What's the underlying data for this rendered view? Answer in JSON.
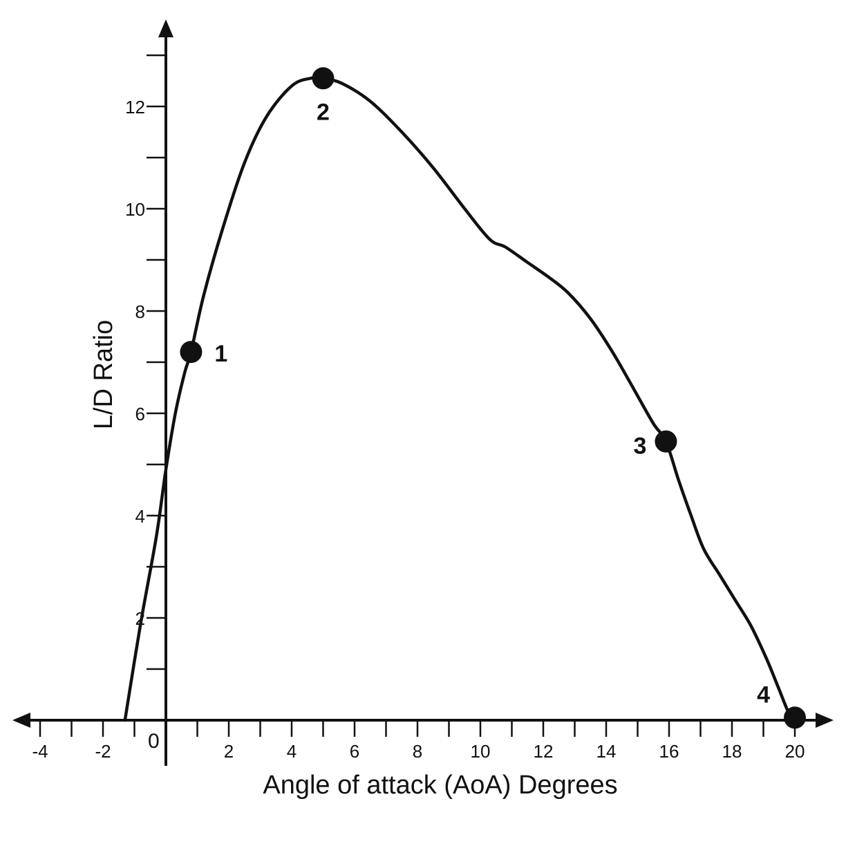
{
  "chart_data": {
    "type": "line",
    "xlabel": "Angle of attack (AoA) Degrees",
    "ylabel": "L/D Ratio",
    "origin_label": "0",
    "xlim": [
      -4,
      20
    ],
    "ylim": [
      0,
      13
    ],
    "x_ticks": [
      -4,
      -2,
      2,
      4,
      6,
      8,
      10,
      12,
      14,
      16,
      18,
      20
    ],
    "y_ticks": [
      2,
      4,
      6,
      8,
      10,
      12
    ],
    "series": [
      {
        "x": [
          -1.3,
          -0.8,
          -0.3,
          0,
          0.3,
          0.6,
          0.8,
          1.2,
          1.8,
          2.5,
          3.2,
          4.0,
          4.6,
          5.0,
          5.6,
          6.5,
          7.5,
          8.5,
          9.5,
          10.3,
          10.8,
          11.5,
          12.2,
          12.8,
          13.5,
          14.2,
          14.9,
          15.5,
          15.9,
          16.3,
          16.7,
          17.1,
          17.6,
          18.1,
          18.6,
          19.1,
          19.5,
          19.8,
          20.0
        ],
        "y": [
          0,
          1.9,
          3.6,
          4.9,
          6.0,
          6.8,
          7.2,
          8.3,
          9.6,
          10.9,
          11.8,
          12.4,
          12.55,
          12.55,
          12.45,
          12.1,
          11.5,
          10.8,
          10.0,
          9.4,
          9.25,
          8.95,
          8.65,
          8.35,
          7.85,
          7.2,
          6.45,
          5.8,
          5.45,
          4.7,
          4.0,
          3.35,
          2.85,
          2.35,
          1.85,
          1.2,
          0.6,
          0.15,
          0
        ]
      }
    ],
    "points": [
      {
        "label": "1",
        "x": 0.8,
        "y": 7.2
      },
      {
        "label": "2",
        "x": 5.0,
        "y": 12.55
      },
      {
        "label": "3",
        "x": 15.9,
        "y": 5.45
      },
      {
        "label": "4",
        "x": 20.0,
        "y": 0.05
      }
    ]
  }
}
